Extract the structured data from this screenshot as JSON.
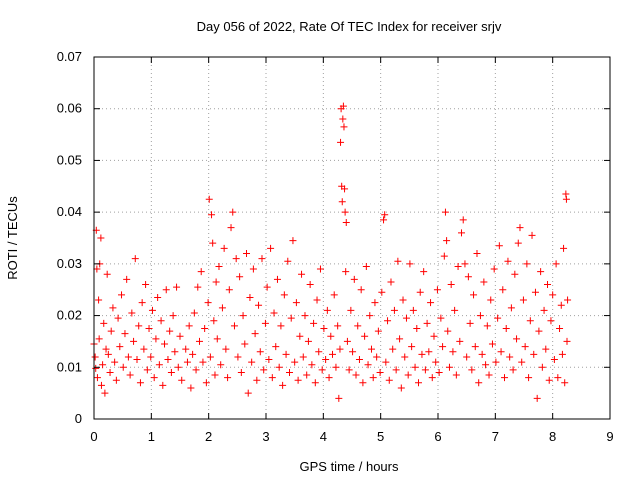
{
  "chart_data": {
    "type": "scatter",
    "title": "Day 056 of 2022, Rate Of TEC Index for receiver srjv",
    "xlabel": "GPS time / hours",
    "ylabel": "ROTI / TECUs",
    "xlim": [
      0,
      9
    ],
    "ylim": [
      0,
      0.07
    ],
    "xticks": [
      0,
      1,
      2,
      3,
      4,
      5,
      6,
      7,
      8,
      9
    ],
    "yticks": [
      0,
      0.01,
      0.02,
      0.03,
      0.04,
      0.05,
      0.06,
      0.07
    ],
    "xtick_labels": [
      "0",
      "1",
      "2",
      "3",
      "4",
      "5",
      "6",
      "7",
      "8",
      "9"
    ],
    "ytick_labels": [
      "0",
      "0.01",
      "0.02",
      "0.03",
      "0.04",
      "0.05",
      "0.06",
      "0.07"
    ],
    "grid": true,
    "marker": "plus",
    "color": "#ff0000",
    "series": [
      {
        "name": "ROTI",
        "points": [
          [
            0.0,
            0.0145
          ],
          [
            0.02,
            0.012
          ],
          [
            0.03,
            0.0098
          ],
          [
            0.04,
            0.0365
          ],
          [
            0.05,
            0.029
          ],
          [
            0.06,
            0.008
          ],
          [
            0.08,
            0.023
          ],
          [
            0.09,
            0.0155
          ],
          [
            0.1,
            0.03
          ],
          [
            0.12,
            0.035
          ],
          [
            0.13,
            0.0065
          ],
          [
            0.15,
            0.0105
          ],
          [
            0.17,
            0.0185
          ],
          [
            0.19,
            0.005
          ],
          [
            0.21,
            0.0135
          ],
          [
            0.23,
            0.028
          ],
          [
            0.25,
            0.0125
          ],
          [
            0.28,
            0.009
          ],
          [
            0.3,
            0.017
          ],
          [
            0.33,
            0.0215
          ],
          [
            0.36,
            0.011
          ],
          [
            0.39,
            0.0075
          ],
          [
            0.42,
            0.0195
          ],
          [
            0.45,
            0.014
          ],
          [
            0.48,
            0.024
          ],
          [
            0.51,
            0.01
          ],
          [
            0.54,
            0.0165
          ],
          [
            0.57,
            0.027
          ],
          [
            0.6,
            0.012
          ],
          [
            0.63,
            0.0085
          ],
          [
            0.66,
            0.0205
          ],
          [
            0.69,
            0.015
          ],
          [
            0.72,
            0.031
          ],
          [
            0.75,
            0.0115
          ],
          [
            0.78,
            0.018
          ],
          [
            0.81,
            0.007
          ],
          [
            0.84,
            0.0225
          ],
          [
            0.87,
            0.0135
          ],
          [
            0.9,
            0.026
          ],
          [
            0.93,
            0.0095
          ],
          [
            0.96,
            0.0175
          ],
          [
            0.99,
            0.012
          ],
          [
            1.02,
            0.021
          ],
          [
            1.05,
            0.008
          ],
          [
            1.08,
            0.0155
          ],
          [
            1.11,
            0.0235
          ],
          [
            1.14,
            0.0105
          ],
          [
            1.17,
            0.019
          ],
          [
            1.2,
            0.0065
          ],
          [
            1.23,
            0.0145
          ],
          [
            1.26,
            0.025
          ],
          [
            1.29,
            0.0115
          ],
          [
            1.32,
            0.017
          ],
          [
            1.35,
            0.009
          ],
          [
            1.38,
            0.02
          ],
          [
            1.41,
            0.013
          ],
          [
            1.44,
            0.0255
          ],
          [
            1.47,
            0.01
          ],
          [
            1.5,
            0.016
          ],
          [
            1.53,
            0.0075
          ],
          [
            1.6,
            0.0135
          ],
          [
            1.63,
            0.011
          ],
          [
            1.66,
            0.018
          ],
          [
            1.69,
            0.006
          ],
          [
            1.72,
            0.0125
          ],
          [
            1.75,
            0.0205
          ],
          [
            1.78,
            0.0095
          ],
          [
            1.81,
            0.0255
          ],
          [
            1.84,
            0.015
          ],
          [
            1.87,
            0.0285
          ],
          [
            1.9,
            0.011
          ],
          [
            1.93,
            0.0175
          ],
          [
            1.96,
            0.007
          ],
          [
            1.99,
            0.0225
          ],
          [
            2.01,
            0.0425
          ],
          [
            2.03,
            0.012
          ],
          [
            2.05,
            0.0395
          ],
          [
            2.07,
            0.034
          ],
          [
            2.09,
            0.019
          ],
          [
            2.11,
            0.0085
          ],
          [
            2.13,
            0.0265
          ],
          [
            2.15,
            0.0155
          ],
          [
            2.18,
            0.0295
          ],
          [
            2.21,
            0.0105
          ],
          [
            2.24,
            0.0215
          ],
          [
            2.27,
            0.033
          ],
          [
            2.3,
            0.0135
          ],
          [
            2.33,
            0.008
          ],
          [
            2.36,
            0.025
          ],
          [
            2.39,
            0.037
          ],
          [
            2.42,
            0.04
          ],
          [
            2.45,
            0.018
          ],
          [
            2.48,
            0.031
          ],
          [
            2.51,
            0.012
          ],
          [
            2.54,
            0.0275
          ],
          [
            2.57,
            0.009
          ],
          [
            2.6,
            0.02
          ],
          [
            2.63,
            0.0145
          ],
          [
            2.66,
            0.032
          ],
          [
            2.69,
            0.005
          ],
          [
            2.72,
            0.0235
          ],
          [
            2.75,
            0.011
          ],
          [
            2.78,
            0.029
          ],
          [
            2.81,
            0.0165
          ],
          [
            2.84,
            0.0075
          ],
          [
            2.87,
            0.022
          ],
          [
            2.9,
            0.013
          ],
          [
            2.93,
            0.031
          ],
          [
            2.96,
            0.0095
          ],
          [
            2.99,
            0.0185
          ],
          [
            3.02,
            0.0255
          ],
          [
            3.05,
            0.0115
          ],
          [
            3.08,
            0.033
          ],
          [
            3.11,
            0.008
          ],
          [
            3.14,
            0.0205
          ],
          [
            3.17,
            0.014
          ],
          [
            3.2,
            0.027
          ],
          [
            3.23,
            0.01
          ],
          [
            3.26,
            0.018
          ],
          [
            3.29,
            0.0065
          ],
          [
            3.32,
            0.024
          ],
          [
            3.35,
            0.0125
          ],
          [
            3.38,
            0.0305
          ],
          [
            3.41,
            0.009
          ],
          [
            3.44,
            0.0195
          ],
          [
            3.47,
            0.0345
          ],
          [
            3.5,
            0.011
          ],
          [
            3.53,
            0.0225
          ],
          [
            3.56,
            0.0075
          ],
          [
            3.59,
            0.016
          ],
          [
            3.62,
            0.028
          ],
          [
            3.65,
            0.012
          ],
          [
            3.68,
            0.02
          ],
          [
            3.71,
            0.0085
          ],
          [
            3.74,
            0.015
          ],
          [
            3.77,
            0.026
          ],
          [
            3.8,
            0.0105
          ],
          [
            3.83,
            0.0185
          ],
          [
            3.86,
            0.007
          ],
          [
            3.89,
            0.023
          ],
          [
            3.92,
            0.013
          ],
          [
            3.95,
            0.029
          ],
          [
            3.98,
            0.0095
          ],
          [
            4.01,
            0.0175
          ],
          [
            4.04,
            0.0115
          ],
          [
            4.07,
            0.021
          ],
          [
            4.1,
            0.008
          ],
          [
            4.13,
            0.016
          ],
          [
            4.16,
            0.0125
          ],
          [
            4.19,
            0.024
          ],
          [
            4.22,
            0.01
          ],
          [
            4.25,
            0.018
          ],
          [
            4.27,
            0.004
          ],
          [
            4.29,
            0.0135
          ],
          [
            4.3,
            0.0535
          ],
          [
            4.31,
            0.06
          ],
          [
            4.32,
            0.045
          ],
          [
            4.33,
            0.042
          ],
          [
            4.34,
            0.058
          ],
          [
            4.35,
            0.0605
          ],
          [
            4.36,
            0.0565
          ],
          [
            4.37,
            0.0445
          ],
          [
            4.38,
            0.04
          ],
          [
            4.39,
            0.0285
          ],
          [
            4.4,
            0.038
          ],
          [
            4.42,
            0.015
          ],
          [
            4.45,
            0.0095
          ],
          [
            4.48,
            0.021
          ],
          [
            4.51,
            0.013
          ],
          [
            4.54,
            0.027
          ],
          [
            4.57,
            0.0085
          ],
          [
            4.6,
            0.018
          ],
          [
            4.63,
            0.0115
          ],
          [
            4.66,
            0.025
          ],
          [
            4.69,
            0.007
          ],
          [
            4.72,
            0.016
          ],
          [
            4.75,
            0.0295
          ],
          [
            4.78,
            0.0105
          ],
          [
            4.81,
            0.02
          ],
          [
            4.84,
            0.0135
          ],
          [
            4.87,
            0.008
          ],
          [
            4.9,
            0.0225
          ],
          [
            4.93,
            0.012
          ],
          [
            4.96,
            0.017
          ],
          [
            4.99,
            0.009
          ],
          [
            5.02,
            0.0245
          ],
          [
            5.05,
            0.0385
          ],
          [
            5.07,
            0.0395
          ],
          [
            5.09,
            0.011
          ],
          [
            5.12,
            0.019
          ],
          [
            5.15,
            0.0075
          ],
          [
            5.18,
            0.0265
          ],
          [
            5.21,
            0.0135
          ],
          [
            5.24,
            0.021
          ],
          [
            5.27,
            0.0095
          ],
          [
            5.3,
            0.0305
          ],
          [
            5.33,
            0.0155
          ],
          [
            5.36,
            0.006
          ],
          [
            5.39,
            0.023
          ],
          [
            5.42,
            0.012
          ],
          [
            5.45,
            0.0195
          ],
          [
            5.48,
            0.0085
          ],
          [
            5.51,
            0.03
          ],
          [
            5.54,
            0.014
          ],
          [
            5.57,
            0.021
          ],
          [
            5.6,
            0.01
          ],
          [
            5.63,
            0.0175
          ],
          [
            5.66,
            0.007
          ],
          [
            5.69,
            0.0245
          ],
          [
            5.72,
            0.0125
          ],
          [
            5.75,
            0.0285
          ],
          [
            5.78,
            0.0095
          ],
          [
            5.81,
            0.0185
          ],
          [
            5.84,
            0.013
          ],
          [
            5.87,
            0.0225
          ],
          [
            5.9,
            0.008
          ],
          [
            5.93,
            0.016
          ],
          [
            5.96,
            0.011
          ],
          [
            5.99,
            0.025
          ],
          [
            6.02,
            0.009
          ],
          [
            6.05,
            0.0195
          ],
          [
            6.08,
            0.014
          ],
          [
            6.11,
            0.0315
          ],
          [
            6.13,
            0.04
          ],
          [
            6.15,
            0.0345
          ],
          [
            6.17,
            0.017
          ],
          [
            6.2,
            0.01
          ],
          [
            6.23,
            0.026
          ],
          [
            6.26,
            0.013
          ],
          [
            6.29,
            0.021
          ],
          [
            6.32,
            0.0085
          ],
          [
            6.35,
            0.0295
          ],
          [
            6.38,
            0.015
          ],
          [
            6.41,
            0.036
          ],
          [
            6.44,
            0.0385
          ],
          [
            6.47,
            0.03
          ],
          [
            6.5,
            0.012
          ],
          [
            6.53,
            0.0275
          ],
          [
            6.56,
            0.0185
          ],
          [
            6.59,
            0.0095
          ],
          [
            6.62,
            0.024
          ],
          [
            6.65,
            0.014
          ],
          [
            6.68,
            0.032
          ],
          [
            6.71,
            0.007
          ],
          [
            6.74,
            0.02
          ],
          [
            6.77,
            0.0125
          ],
          [
            6.8,
            0.0265
          ],
          [
            6.83,
            0.0105
          ],
          [
            6.86,
            0.018
          ],
          [
            6.89,
            0.0085
          ],
          [
            6.92,
            0.023
          ],
          [
            6.95,
            0.0145
          ],
          [
            6.98,
            0.029
          ],
          [
            7.01,
            0.011
          ],
          [
            7.04,
            0.0195
          ],
          [
            7.07,
            0.0335
          ],
          [
            7.1,
            0.013
          ],
          [
            7.13,
            0.025
          ],
          [
            7.16,
            0.008
          ],
          [
            7.19,
            0.0175
          ],
          [
            7.22,
            0.0305
          ],
          [
            7.25,
            0.012
          ],
          [
            7.28,
            0.0215
          ],
          [
            7.31,
            0.0095
          ],
          [
            7.34,
            0.028
          ],
          [
            7.37,
            0.0155
          ],
          [
            7.4,
            0.034
          ],
          [
            7.43,
            0.037
          ],
          [
            7.46,
            0.011
          ],
          [
            7.49,
            0.023
          ],
          [
            7.52,
            0.014
          ],
          [
            7.55,
            0.03
          ],
          [
            7.58,
            0.008
          ],
          [
            7.61,
            0.019
          ],
          [
            7.64,
            0.0355
          ],
          [
            7.67,
            0.0125
          ],
          [
            7.7,
            0.0245
          ],
          [
            7.73,
            0.004
          ],
          [
            7.76,
            0.017
          ],
          [
            7.79,
            0.0285
          ],
          [
            7.82,
            0.01
          ],
          [
            7.85,
            0.021
          ],
          [
            7.88,
            0.0135
          ],
          [
            7.91,
            0.026
          ],
          [
            7.94,
            0.0075
          ],
          [
            7.97,
            0.019
          ],
          [
            8.0,
            0.024
          ],
          [
            8.03,
            0.0115
          ],
          [
            8.06,
            0.03
          ],
          [
            8.09,
            0.008
          ],
          [
            8.12,
            0.0175
          ],
          [
            8.15,
            0.022
          ],
          [
            8.17,
            0.0125
          ],
          [
            8.19,
            0.033
          ],
          [
            8.21,
            0.007
          ],
          [
            8.23,
            0.0435
          ],
          [
            8.24,
            0.0425
          ],
          [
            8.25,
            0.015
          ],
          [
            8.26,
            0.023
          ]
        ]
      }
    ]
  }
}
